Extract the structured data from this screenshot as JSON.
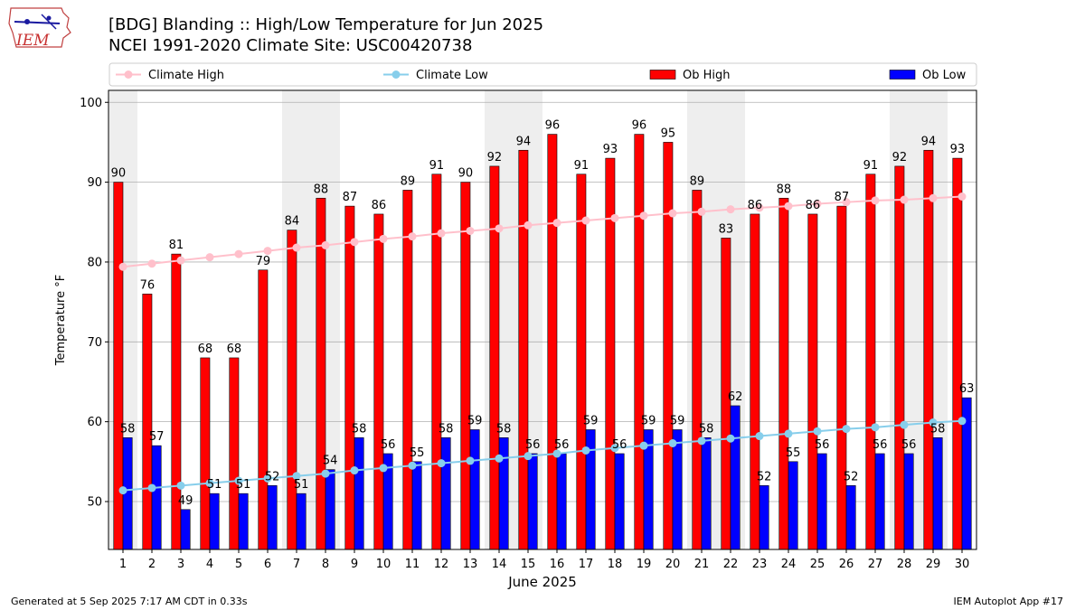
{
  "header": {
    "title_line1": "[BDG] Blanding :: High/Low Temperature for Jun 2025",
    "title_line2": "NCEI 1991-2020 Climate Site: USC00420738"
  },
  "logo": {
    "text": "IEM",
    "icon": "iowa-state-outline-logo"
  },
  "footer": {
    "left": "Generated at 5 Sep 2025 7:17 AM CDT in 0.33s",
    "right": "IEM Autoplot App #17"
  },
  "colors": {
    "ob_high": "#ff0000",
    "ob_low": "#0000ff",
    "climate_high": "#ffc0cb",
    "climate_low": "#87ceeb",
    "weekend_shade": "#eeeeee",
    "grid": "#b0b0b0"
  },
  "chart_data": {
    "type": "bar",
    "xlabel": "June 2025",
    "ylabel": "Temperature °F",
    "ylim": [
      44,
      101.5
    ],
    "yticks": [
      50,
      60,
      70,
      80,
      90,
      100
    ],
    "grid": "horizontal",
    "legend_position": "top",
    "categories": [
      "1",
      "2",
      "3",
      "4",
      "5",
      "6",
      "7",
      "8",
      "9",
      "10",
      "11",
      "12",
      "13",
      "14",
      "15",
      "16",
      "17",
      "18",
      "19",
      "20",
      "21",
      "22",
      "23",
      "24",
      "25",
      "26",
      "27",
      "28",
      "29",
      "30"
    ],
    "shaded_weekend_days": [
      1,
      7,
      8,
      14,
      15,
      21,
      22,
      28,
      29
    ],
    "series": [
      {
        "name": "Climate High",
        "type": "line",
        "values": [
          79.4,
          79.8,
          80.2,
          80.6,
          81.0,
          81.4,
          81.8,
          82.1,
          82.5,
          82.9,
          83.2,
          83.6,
          83.9,
          84.2,
          84.6,
          84.9,
          85.2,
          85.5,
          85.8,
          86.1,
          86.3,
          86.6,
          86.8,
          87.0,
          87.3,
          87.5,
          87.7,
          87.8,
          88.0,
          88.2
        ]
      },
      {
        "name": "Climate Low",
        "type": "line",
        "values": [
          51.4,
          51.7,
          52.0,
          52.3,
          52.6,
          52.9,
          53.2,
          53.5,
          53.9,
          54.2,
          54.5,
          54.8,
          55.1,
          55.4,
          55.7,
          56.0,
          56.4,
          56.7,
          57.0,
          57.3,
          57.6,
          57.9,
          58.2,
          58.5,
          58.8,
          59.1,
          59.3,
          59.6,
          59.9,
          60.1
        ]
      },
      {
        "name": "Ob High",
        "type": "bar",
        "values": [
          90,
          76,
          81,
          68,
          68,
          79,
          84,
          88,
          87,
          86,
          89,
          91,
          90,
          92,
          94,
          96,
          91,
          93,
          96,
          95,
          89,
          83,
          86,
          88,
          86,
          87,
          91,
          92,
          94,
          93
        ]
      },
      {
        "name": "Ob Low",
        "type": "bar",
        "values": [
          58,
          57,
          49,
          51,
          51,
          52,
          51,
          54,
          58,
          56,
          55,
          58,
          59,
          58,
          56,
          56,
          59,
          56,
          59,
          59,
          58,
          62,
          52,
          55,
          56,
          52,
          56,
          56,
          58,
          63
        ]
      }
    ]
  }
}
